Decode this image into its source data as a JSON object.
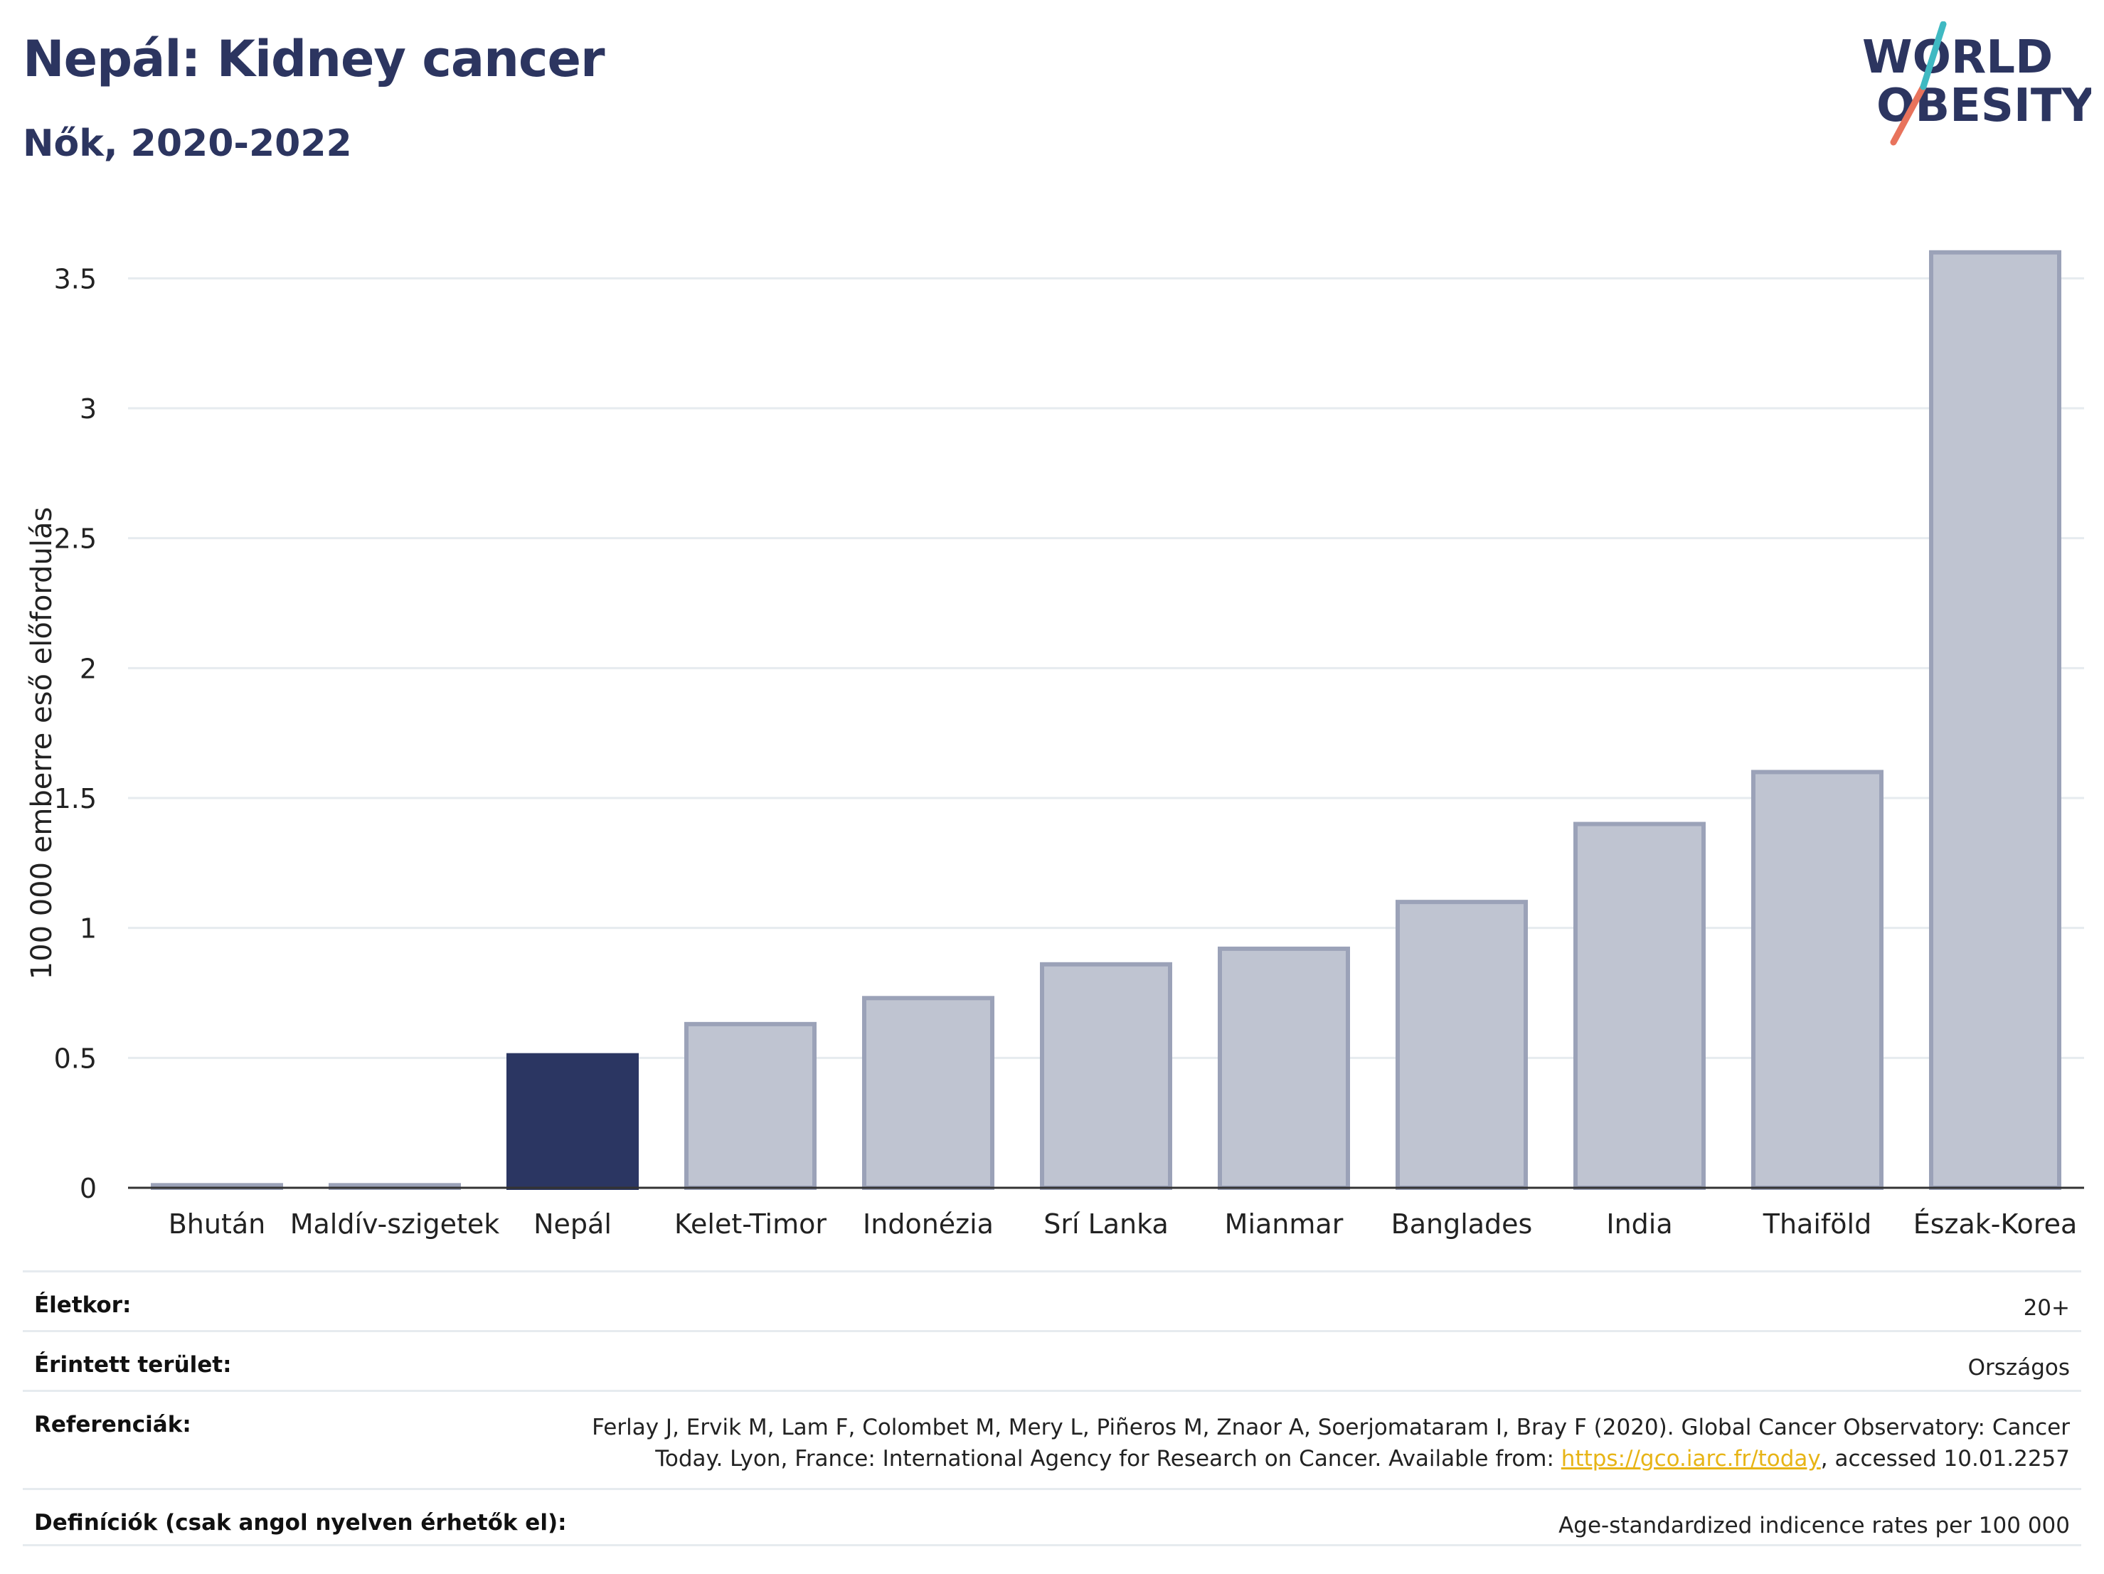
{
  "header": {
    "title": "Nepál: Kidney cancer",
    "subtitle": "Nők, 2020-2022"
  },
  "logo": {
    "line1": "WORLD",
    "line2": "OBESITY"
  },
  "colors": {
    "highlight": "#2b3662",
    "bar_fill": "#bfc4d1",
    "bar_stroke": "#9ba2b8",
    "gridline": "#e6ebef",
    "title": "#2c3560",
    "link": "#e7b416",
    "logo_teal": "#3fb9c2",
    "logo_coral": "#e8735c"
  },
  "chart_data": {
    "type": "bar",
    "title": "Nepál: Kidney cancer",
    "subtitle": "Nők, 2020-2022",
    "ylabel": "100 000 emberre eső előfordulás",
    "xlabel": "",
    "ylim": [
      0,
      3.75
    ],
    "yticks": [
      0,
      0.5,
      1,
      1.5,
      2,
      2.5,
      3,
      3.5
    ],
    "ytick_labels": [
      "0",
      "0.5",
      "1",
      "1.5",
      "2",
      "2.5",
      "3",
      "3.5"
    ],
    "grid": true,
    "highlight": "Nepál",
    "categories": [
      "Bhután",
      "Maldív-szigetek",
      "Nepál",
      "Kelet-Timor",
      "Indonézia",
      "Srí Lanka",
      "Mianmar",
      "Banglades",
      "India",
      "Thaiföld",
      "Észak-Korea"
    ],
    "values": [
      0.01,
      0.01,
      0.51,
      0.63,
      0.73,
      0.86,
      0.92,
      1.1,
      1.4,
      1.6,
      3.6
    ]
  },
  "meta": {
    "age_label": "Életkor:",
    "age_value": "20+",
    "area_label": "Érintett terület:",
    "area_value": "Országos",
    "ref_label": "Referenciák:",
    "ref_line1": "Ferlay J, Ervik M, Lam F, Colombet M, Mery L, Piñeros M, Znaor A, Soerjomataram I, Bray F (2020). Global Cancer Observatory: Cancer",
    "ref_line2_pre": "Today. Lyon, France: International Agency for Research on Cancer. Available from: ",
    "ref_link": "https://gco.iarc.fr/today",
    "ref_line2_post": ", accessed 10.01.2257",
    "def_label": "Definíciók (csak angol nyelven érhetők el):",
    "def_value": "Age-standardized indicence rates per 100 000"
  }
}
